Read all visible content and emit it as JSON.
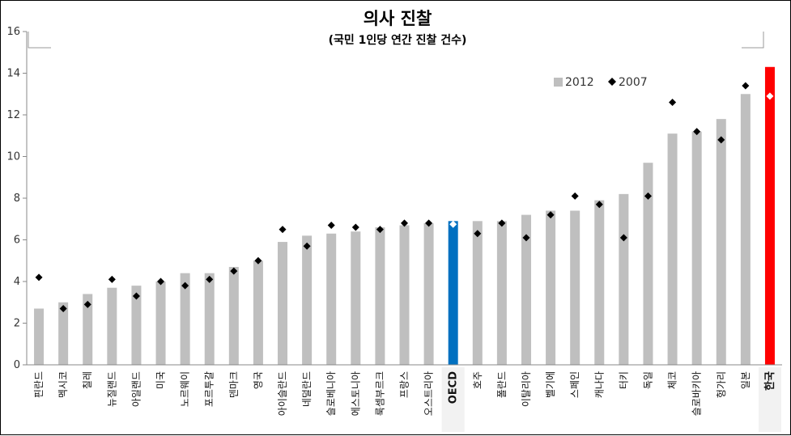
{
  "chart_data": {
    "type": "bar",
    "title": "의사 진찰",
    "subtitle": "(국민 1인당 연간 진찰 건수)",
    "categories": [
      "핀란드",
      "멕시코",
      "칠레",
      "뉴질랜드",
      "아일랜드",
      "미국",
      "노르웨이",
      "포르투갈",
      "덴마크",
      "영국",
      "아이슬란드",
      "네덜란드",
      "슬로베니아",
      "에스토니아",
      "룩셈부르크",
      "프랑스",
      "오스트리아",
      "OECD",
      "호주",
      "폴란드",
      "이탈리아",
      "벨기에",
      "스페인",
      "캐나다",
      "터키",
      "독일",
      "체코",
      "슬로바키아",
      "헝가리",
      "일본",
      "한국"
    ],
    "series": [
      {
        "name": "2012",
        "type": "bar",
        "values": [
          2.7,
          3.0,
          3.4,
          3.7,
          3.8,
          4.0,
          4.4,
          4.4,
          4.7,
          5.0,
          5.9,
          6.2,
          6.3,
          6.4,
          6.6,
          6.7,
          6.8,
          6.9,
          6.9,
          6.9,
          7.2,
          7.4,
          7.4,
          7.9,
          8.2,
          9.7,
          11.1,
          11.2,
          11.8,
          13.0,
          14.3
        ]
      },
      {
        "name": "2007",
        "type": "scatter",
        "values": [
          4.2,
          2.7,
          2.9,
          4.1,
          3.3,
          4.0,
          3.8,
          4.1,
          4.5,
          5.0,
          6.5,
          5.7,
          6.7,
          6.6,
          6.5,
          6.8,
          6.8,
          6.75,
          6.3,
          6.8,
          6.1,
          7.2,
          8.1,
          7.7,
          6.1,
          8.1,
          12.6,
          11.2,
          10.8,
          13.4,
          12.9
        ]
      }
    ],
    "highlights": {
      "OECD": "#0070C0",
      "한국": "#FF0000"
    },
    "bar_color": "#BFBFBF",
    "marker_color": "#000000",
    "ylim": [
      0,
      16
    ],
    "yticks": [
      0,
      2,
      4,
      6,
      8,
      10,
      12,
      14,
      16
    ],
    "legend": {
      "position": "top-right",
      "entries": [
        "2012",
        "2007"
      ]
    },
    "grid": false
  }
}
